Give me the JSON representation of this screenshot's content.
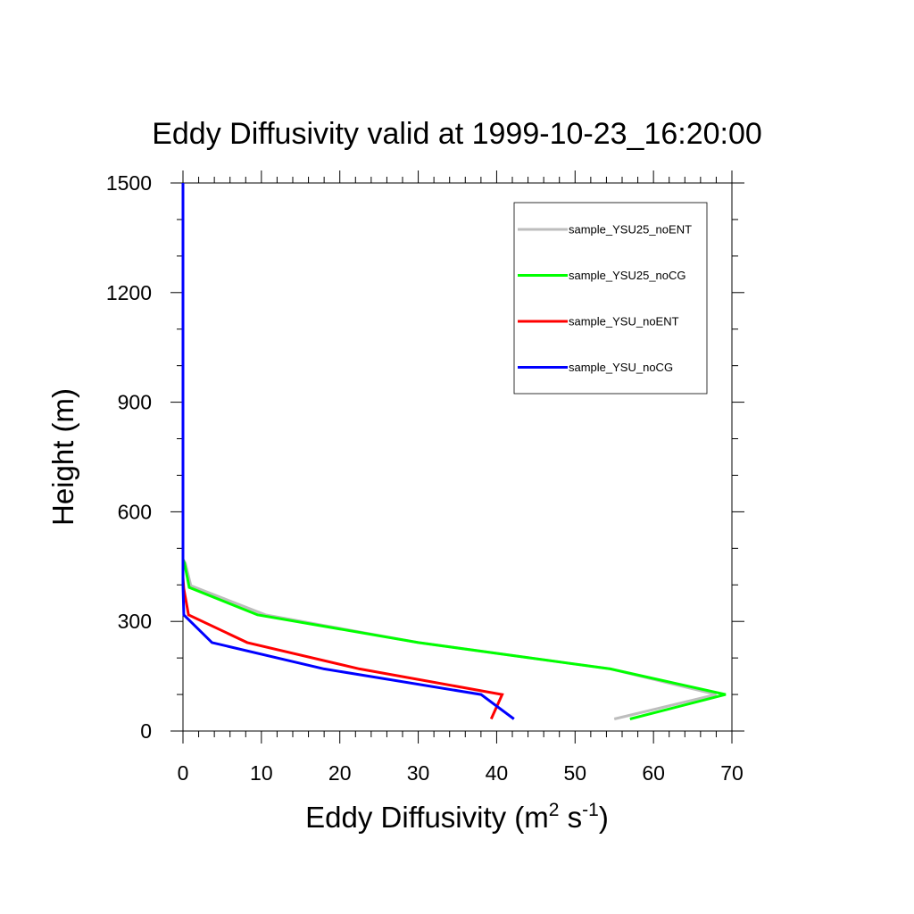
{
  "chart_data": {
    "type": "line",
    "title": "Eddy Diffusivity valid at 1999-10-23_16:20:00",
    "xlabel": {
      "base": "Eddy Diffusivity (m",
      "sup1": "2",
      "mid": " s",
      "sup2": "-1",
      "end": ")"
    },
    "ylabel": "Height (m)",
    "xlim": [
      0,
      70
    ],
    "ylim": [
      0,
      1500
    ],
    "x_major_ticks": [
      0,
      10,
      20,
      30,
      40,
      50,
      60,
      70
    ],
    "x_tick_labels": [
      "0",
      "10",
      "20",
      "30",
      "40",
      "50",
      "60",
      "70"
    ],
    "y_major_ticks": [
      0,
      300,
      600,
      900,
      1200,
      1500
    ],
    "y_tick_labels": [
      "0",
      "300",
      "600",
      "900",
      "1200",
      "1500"
    ],
    "legend_position": "top-right",
    "series": [
      {
        "name": "sample_YSU25_noENT",
        "color": "#bdbdbd",
        "points": [
          [
            55,
            33
          ],
          [
            68,
            100
          ],
          [
            54.5,
            170
          ],
          [
            30,
            242
          ],
          [
            10.5,
            318
          ],
          [
            1,
            398
          ],
          [
            0.3,
            460
          ],
          [
            0,
            470
          ],
          [
            0,
            1500
          ]
        ]
      },
      {
        "name": "sample_YSU25_noCG",
        "color": "#00ff00",
        "points": [
          [
            57,
            33
          ],
          [
            69.2,
            100
          ],
          [
            54.5,
            170
          ],
          [
            30,
            242
          ],
          [
            9.5,
            318
          ],
          [
            0.8,
            393
          ],
          [
            0.2,
            458
          ],
          [
            0,
            470
          ],
          [
            0,
            1500
          ]
        ]
      },
      {
        "name": "sample_YSU_noENT",
        "color": "#ff0000",
        "points": [
          [
            39.3,
            33
          ],
          [
            40.7,
            100
          ],
          [
            22.5,
            170
          ],
          [
            8.2,
            242
          ],
          [
            0.7,
            318
          ],
          [
            0.1,
            390
          ],
          [
            0,
            420
          ],
          [
            0,
            1500
          ]
        ]
      },
      {
        "name": "sample_YSU_noCG",
        "color": "#0000ff",
        "points": [
          [
            42.2,
            33
          ],
          [
            38,
            100
          ],
          [
            18,
            170
          ],
          [
            3.7,
            242
          ],
          [
            0.1,
            318
          ],
          [
            0,
            400
          ],
          [
            0,
            1500
          ]
        ]
      }
    ]
  }
}
